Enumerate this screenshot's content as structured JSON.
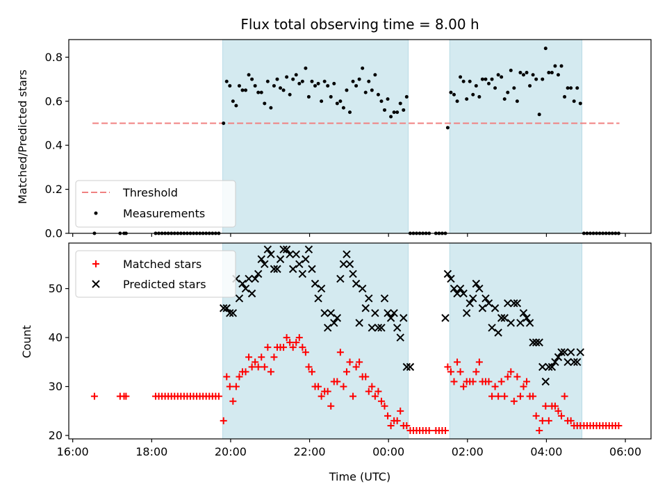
{
  "title": "Flux total observing time = 8.00 h",
  "colors": {
    "observing_shade": "#d4eaf0",
    "threshold": "#f08080",
    "measurements": "#000000",
    "matched": "#ff0000",
    "predicted": "#000000"
  },
  "chart_data": [
    {
      "type": "scatter",
      "panel": "top",
      "title": "Flux total observing time = 8.00 h",
      "xlabel": "",
      "ylabel": "Matched/Predicted stars",
      "x_axis": "time (hours, 16:00 reference)",
      "xlim": [
        15.9,
        30.65
      ],
      "ylim": [
        0.0,
        0.88
      ],
      "yticks": [
        0.0,
        0.2,
        0.4,
        0.6,
        0.8
      ],
      "ytick_labels": [
        "0.0",
        "0.2",
        "0.4",
        "0.6",
        "0.8"
      ],
      "legend": {
        "position": "lower-left",
        "entries": [
          "Threshold",
          "Measurements"
        ]
      },
      "threshold": {
        "name": "Threshold",
        "y": 0.5,
        "x_range": [
          16.5,
          29.85
        ]
      },
      "observing_windows": [
        [
          19.8,
          24.5
        ],
        [
          25.55,
          28.9
        ]
      ],
      "series": [
        {
          "name": "Measurements",
          "x": [
            16.55,
            17.2,
            17.3,
            17.35,
            18.1,
            18.18,
            18.26,
            18.34,
            18.42,
            18.5,
            18.58,
            18.66,
            18.74,
            18.82,
            18.9,
            18.98,
            19.06,
            19.14,
            19.22,
            19.3,
            19.38,
            19.46,
            19.54,
            19.62,
            19.7,
            19.82,
            19.9,
            19.98,
            20.06,
            20.14,
            20.22,
            20.3,
            20.38,
            20.46,
            20.54,
            20.62,
            20.7,
            20.78,
            20.86,
            20.94,
            21.02,
            21.1,
            21.18,
            21.26,
            21.34,
            21.42,
            21.5,
            21.58,
            21.66,
            21.74,
            21.82,
            21.9,
            21.98,
            22.06,
            22.14,
            22.22,
            22.3,
            22.38,
            22.46,
            22.54,
            22.62,
            22.7,
            22.78,
            22.86,
            22.94,
            23.02,
            23.1,
            23.18,
            23.26,
            23.34,
            23.42,
            23.5,
            23.58,
            23.66,
            23.74,
            23.82,
            23.9,
            23.98,
            24.06,
            24.14,
            24.22,
            24.3,
            24.38,
            24.46,
            24.55,
            24.63,
            24.71,
            24.79,
            24.87,
            24.95,
            25.03,
            25.2,
            25.28,
            25.36,
            25.44,
            25.5,
            25.58,
            25.66,
            25.74,
            25.82,
            25.9,
            25.98,
            26.06,
            26.14,
            26.22,
            26.3,
            26.38,
            26.46,
            26.54,
            26.62,
            26.7,
            26.78,
            26.86,
            26.94,
            27.02,
            27.1,
            27.18,
            27.26,
            27.34,
            27.42,
            27.5,
            27.58,
            27.66,
            27.74,
            27.82,
            27.9,
            27.98,
            28.06,
            28.14,
            28.22,
            28.3,
            28.38,
            28.46,
            28.54,
            28.62,
            28.7,
            28.78,
            28.86,
            28.95,
            29.03,
            29.11,
            29.19,
            29.27,
            29.35,
            29.43,
            29.51,
            29.59,
            29.67,
            29.75,
            29.83
          ],
          "y": [
            0,
            0,
            0,
            0,
            0,
            0,
            0,
            0,
            0,
            0,
            0,
            0,
            0,
            0,
            0,
            0,
            0,
            0,
            0,
            0,
            0,
            0,
            0,
            0,
            0,
            0.5,
            0.69,
            0.67,
            0.6,
            0.58,
            0.67,
            0.65,
            0.65,
            0.72,
            0.7,
            0.67,
            0.64,
            0.64,
            0.59,
            0.69,
            0.57,
            0.67,
            0.7,
            0.66,
            0.65,
            0.71,
            0.63,
            0.7,
            0.72,
            0.68,
            0.69,
            0.75,
            0.62,
            0.69,
            0.67,
            0.68,
            0.6,
            0.69,
            0.67,
            0.62,
            0.68,
            0.59,
            0.6,
            0.57,
            0.65,
            0.55,
            0.69,
            0.67,
            0.7,
            0.75,
            0.64,
            0.69,
            0.65,
            0.72,
            0.63,
            0.6,
            0.56,
            0.61,
            0.53,
            0.55,
            0.55,
            0.59,
            0.56,
            0.62,
            0,
            0,
            0,
            0,
            0,
            0,
            0,
            0,
            0,
            0,
            0,
            0.48,
            0.64,
            0.63,
            0.6,
            0.71,
            0.69,
            0.61,
            0.69,
            0.63,
            0.67,
            0.62,
            0.7,
            0.7,
            0.68,
            0.7,
            0.66,
            0.72,
            0.71,
            0.61,
            0.64,
            0.74,
            0.66,
            0.6,
            0.73,
            0.72,
            0.73,
            0.67,
            0.72,
            0.7,
            0.54,
            0.7,
            0.84,
            0.73,
            0.73,
            0.76,
            0.72,
            0.76,
            0.62,
            0.66,
            0.66,
            0.6,
            0.66,
            0.59,
            0,
            0,
            0,
            0,
            0,
            0,
            0,
            0,
            0,
            0,
            0,
            0
          ]
        }
      ]
    },
    {
      "type": "scatter",
      "panel": "bottom",
      "xlabel": "Time (UTC)",
      "ylabel": "Count",
      "xlim": [
        15.9,
        30.65
      ],
      "ylim": [
        19.3,
        59.3
      ],
      "xticks": [
        16,
        18,
        20,
        22,
        24,
        26,
        28,
        30
      ],
      "xtick_labels": [
        "16:00",
        "18:00",
        "20:00",
        "22:00",
        "00:00",
        "02:00",
        "04:00",
        "06:00"
      ],
      "yticks": [
        20,
        30,
        40,
        50
      ],
      "ytick_labels": [
        "20",
        "30",
        "40",
        "50"
      ],
      "legend": {
        "position": "top-left",
        "entries": [
          "Matched stars",
          "Predicted stars"
        ]
      },
      "observing_windows": [
        [
          19.8,
          24.5
        ],
        [
          25.55,
          28.9
        ]
      ],
      "series": [
        {
          "name": "Matched stars",
          "marker": "plus",
          "x": [
            16.55,
            17.2,
            17.3,
            17.35,
            18.1,
            18.18,
            18.26,
            18.34,
            18.42,
            18.5,
            18.58,
            18.66,
            18.74,
            18.82,
            18.9,
            18.98,
            19.06,
            19.14,
            19.22,
            19.3,
            19.38,
            19.46,
            19.54,
            19.62,
            19.7,
            19.82,
            19.9,
            19.98,
            20.06,
            20.14,
            20.22,
            20.3,
            20.38,
            20.46,
            20.54,
            20.62,
            20.7,
            20.78,
            20.86,
            20.94,
            21.02,
            21.1,
            21.18,
            21.26,
            21.34,
            21.42,
            21.5,
            21.58,
            21.66,
            21.74,
            21.82,
            21.9,
            21.98,
            22.06,
            22.14,
            22.22,
            22.3,
            22.38,
            22.46,
            22.54,
            22.62,
            22.7,
            22.78,
            22.86,
            22.94,
            23.02,
            23.1,
            23.18,
            23.26,
            23.34,
            23.42,
            23.5,
            23.58,
            23.66,
            23.74,
            23.82,
            23.9,
            23.98,
            24.06,
            24.14,
            24.22,
            24.3,
            24.38,
            24.46,
            24.55,
            24.63,
            24.71,
            24.79,
            24.87,
            24.95,
            25.03,
            25.2,
            25.28,
            25.36,
            25.44,
            25.5,
            25.58,
            25.66,
            25.74,
            25.82,
            25.9,
            25.98,
            26.06,
            26.14,
            26.22,
            26.3,
            26.38,
            26.46,
            26.54,
            26.62,
            26.7,
            26.78,
            26.86,
            26.94,
            27.02,
            27.1,
            27.18,
            27.26,
            27.34,
            27.42,
            27.5,
            27.58,
            27.66,
            27.74,
            27.82,
            27.9,
            27.98,
            28.06,
            28.14,
            28.22,
            28.3,
            28.38,
            28.46,
            28.54,
            28.62,
            28.7,
            28.78,
            28.86,
            28.95,
            29.03,
            29.11,
            29.19,
            29.27,
            29.35,
            29.43,
            29.51,
            29.59,
            29.67,
            29.75,
            29.83
          ],
          "y": [
            28,
            28,
            28,
            28,
            28,
            28,
            28,
            28,
            28,
            28,
            28,
            28,
            28,
            28,
            28,
            28,
            28,
            28,
            28,
            28,
            28,
            28,
            28,
            28,
            28,
            23,
            32,
            30,
            27,
            30,
            32,
            33,
            33,
            36,
            34,
            35,
            34,
            36,
            34,
            38,
            33,
            36,
            38,
            38,
            38,
            40,
            39,
            38,
            39,
            40,
            38,
            37,
            34,
            33,
            30,
            30,
            28,
            29,
            29,
            26,
            31,
            31,
            37,
            30,
            33,
            35,
            28,
            34,
            35,
            32,
            32,
            29,
            30,
            28,
            29,
            27,
            26,
            24,
            22,
            23,
            23,
            25,
            22,
            22,
            21,
            21,
            21,
            21,
            21,
            21,
            21,
            21,
            21,
            21,
            21,
            34,
            33,
            31,
            35,
            33,
            30,
            31,
            31,
            31,
            33,
            35,
            31,
            31,
            31,
            28,
            30,
            28,
            31,
            28,
            32,
            33,
            27,
            32,
            28,
            30,
            31,
            28,
            28,
            24,
            21,
            23,
            26,
            23,
            26,
            26,
            25,
            24,
            28,
            23,
            23,
            22,
            22,
            22,
            22,
            22,
            22,
            22,
            22,
            22,
            22,
            22,
            22,
            22,
            22,
            22
          ]
        },
        {
          "name": "Predicted stars",
          "marker": "x",
          "x": [
            19.82,
            19.9,
            19.98,
            20.06,
            20.14,
            20.22,
            20.3,
            20.38,
            20.46,
            20.54,
            20.62,
            20.7,
            20.78,
            20.86,
            20.94,
            21.02,
            21.1,
            21.18,
            21.26,
            21.34,
            21.42,
            21.5,
            21.58,
            21.66,
            21.74,
            21.82,
            21.9,
            21.98,
            22.06,
            22.14,
            22.22,
            22.3,
            22.38,
            22.46,
            22.54,
            22.62,
            22.7,
            22.78,
            22.86,
            22.94,
            23.02,
            23.1,
            23.18,
            23.26,
            23.34,
            23.42,
            23.5,
            23.58,
            23.66,
            23.74,
            23.82,
            23.9,
            23.98,
            24.06,
            24.14,
            24.22,
            24.3,
            24.38,
            24.46,
            24.55,
            25.44,
            25.5,
            25.58,
            25.66,
            25.74,
            25.82,
            25.9,
            25.98,
            26.06,
            26.14,
            26.22,
            26.3,
            26.38,
            26.46,
            26.54,
            26.62,
            26.7,
            26.78,
            26.86,
            26.94,
            27.02,
            27.1,
            27.18,
            27.26,
            27.34,
            27.42,
            27.5,
            27.58,
            27.66,
            27.74,
            27.82,
            27.9,
            27.98,
            28.06,
            28.14,
            28.22,
            28.3,
            28.38,
            28.46,
            28.54,
            28.62,
            28.7,
            28.78,
            28.86
          ],
          "y": [
            46,
            46,
            45,
            45,
            52,
            48,
            51,
            50,
            52,
            49,
            52,
            53,
            56,
            55,
            58,
            57,
            54,
            54,
            56,
            58,
            58,
            57,
            54,
            57,
            55,
            53,
            56,
            58,
            54,
            51,
            48,
            50,
            45,
            42,
            45,
            43,
            44,
            52,
            55,
            57,
            55,
            53,
            51,
            43,
            50,
            46,
            48,
            42,
            45,
            42,
            42,
            48,
            45,
            44,
            45,
            42,
            40,
            44,
            34,
            34,
            44,
            53,
            52,
            50,
            49,
            50,
            49,
            45,
            47,
            48,
            51,
            50,
            46,
            48,
            47,
            42,
            46,
            41,
            44,
            44,
            47,
            43,
            47,
            47,
            43,
            45,
            44,
            43,
            39,
            39,
            39,
            34,
            31,
            34,
            34,
            35,
            36,
            37,
            37,
            35,
            37,
            35,
            35,
            37
          ]
        }
      ]
    }
  ]
}
